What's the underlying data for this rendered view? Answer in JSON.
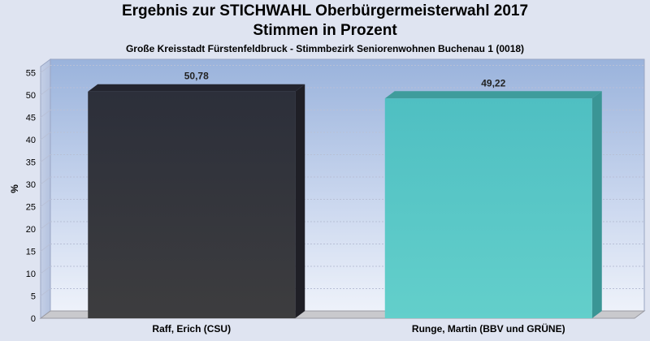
{
  "chart_data": {
    "type": "bar",
    "title": "Ergebnis zur STICHWAHL Oberbürgermeisterwahl 2017",
    "subtitle": "Stimmen in Prozent",
    "caption": "Große Kreisstadt Fürstenfeldbruck - Stimmbezirk Seniorenwohnen Buchenau 1 (0018)",
    "ylabel": "%",
    "ylim": [
      0,
      58
    ],
    "yticks": [
      0,
      5,
      10,
      15,
      20,
      25,
      30,
      35,
      40,
      45,
      50,
      55
    ],
    "categories": [
      "Raff, Erich (CSU)",
      "Runge, Martin (BBV und GRÜNE)"
    ],
    "values": [
      50.78,
      49.22
    ],
    "value_labels": [
      "50,78",
      "49,22"
    ],
    "colors": [
      "#2e2e38",
      "#55c5c5"
    ],
    "side_colors": [
      "#1f1f26",
      "#3a9595"
    ],
    "top_colors": [
      "#24252f",
      "#3f9c9c"
    ],
    "grid": true
  }
}
